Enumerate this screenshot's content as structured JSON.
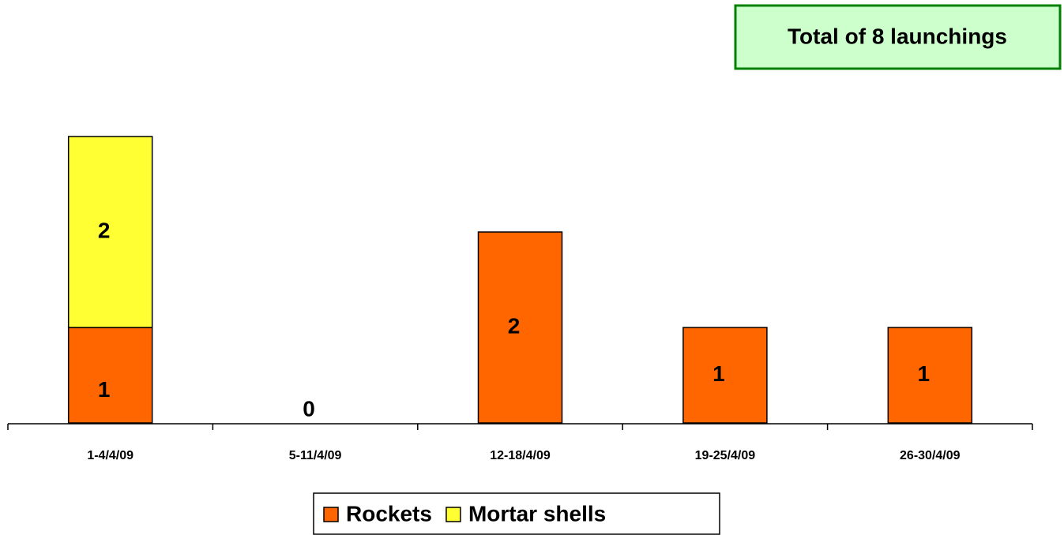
{
  "chart_data": {
    "type": "stacked_bar",
    "annotation": "Total of 8 launchings",
    "categories": [
      "1-4/4/09",
      "5-11/4/09",
      "12-18/4/09",
      "19-25/4/09",
      "26-30/4/09"
    ],
    "series": [
      {
        "name": "Rockets",
        "color": "#ff6600",
        "values": [
          1,
          0,
          2,
          1,
          1
        ]
      },
      {
        "name": "Mortar shells",
        "color": "#ffff33",
        "values": [
          2,
          null,
          null,
          null,
          null
        ]
      }
    ],
    "ylim": [
      0,
      4
    ],
    "legend": "bottom"
  }
}
